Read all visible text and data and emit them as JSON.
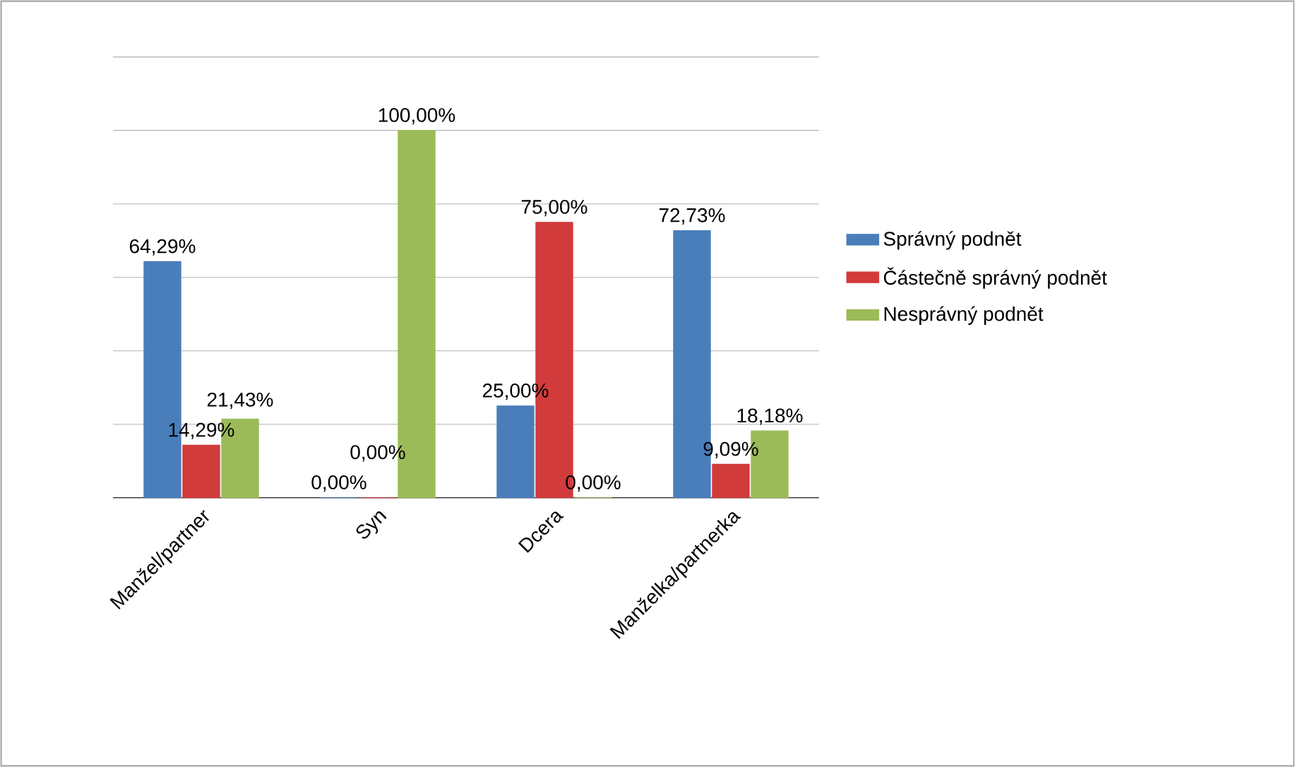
{
  "chart_data": {
    "type": "bar",
    "categories": [
      "Manžel/partner",
      "Syn",
      "Dcera",
      "Manželka/partnerka"
    ],
    "series": [
      {
        "name": "Správný podnět",
        "color": "#4a7ebb",
        "values": [
          64.29,
          0,
          25,
          72.73
        ],
        "value_labels": [
          "64,29%",
          "0,00%",
          "25,00%",
          "72,73%"
        ]
      },
      {
        "name": "Částečně správný podnět",
        "color": "#d13b3b",
        "values": [
          14.29,
          0,
          75,
          9.09
        ],
        "value_labels": [
          "14,29%",
          "0,00%",
          "75,00%",
          "9,09%"
        ]
      },
      {
        "name": "Nesprávný podnět",
        "color": "#9bbb59",
        "values": [
          21.43,
          100,
          0,
          18.18
        ],
        "value_labels": [
          "21,43%",
          "100,00%",
          "0,00%",
          "18,18%"
        ]
      }
    ],
    "ylim": [
      0,
      120
    ],
    "yticks": [
      {
        "value": 0,
        "label": null
      },
      {
        "value": 20,
        "label": null
      },
      {
        "value": 40,
        "label": null
      },
      {
        "value": 60,
        "label": null
      },
      {
        "value": 80,
        "label": null
      },
      {
        "value": 100,
        "label": null
      },
      {
        "value": 120,
        "label": null
      }
    ],
    "tick_labels": "x",
    "grid": "y",
    "legend": "right"
  }
}
